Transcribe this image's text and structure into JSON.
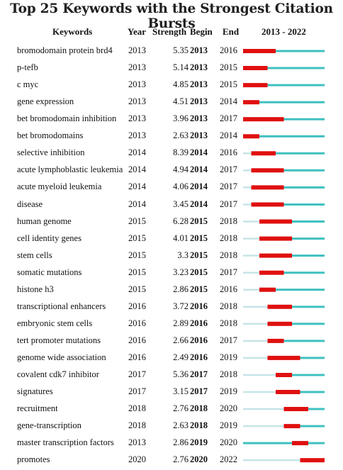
{
  "chart_data": {
    "type": "table",
    "title": "Top 25 Keywords with the Strongest Citation Bursts",
    "columns": [
      "Keywords",
      "Year",
      "Strength",
      "Begin",
      "End",
      "2013 - 2022"
    ],
    "timeline": {
      "start": 2013,
      "end": 2022
    },
    "colors": {
      "burst": "#e01010",
      "active": "#3fc0c0",
      "pre": "#c4e4e6"
    },
    "rows": [
      {
        "keyword": "bromodomain protein brd4",
        "year": "2013",
        "strength": "5.35",
        "begin": "2013",
        "end": "2016"
      },
      {
        "keyword": "p-tefb",
        "year": "2013",
        "strength": "5.14",
        "begin": "2013",
        "end": "2015"
      },
      {
        "keyword": "c myc",
        "year": "2013",
        "strength": "4.85",
        "begin": "2013",
        "end": "2015"
      },
      {
        "keyword": "gene expression",
        "year": "2013",
        "strength": "4.51",
        "begin": "2013",
        "end": "2014"
      },
      {
        "keyword": "bet bromodomain inhibition",
        "year": "2013",
        "strength": "3.96",
        "begin": "2013",
        "end": "2017"
      },
      {
        "keyword": "bet bromodomains",
        "year": "2013",
        "strength": "2.63",
        "begin": "2013",
        "end": "2014"
      },
      {
        "keyword": "selective inhibition",
        "year": "2014",
        "strength": "8.39",
        "begin": "2014",
        "end": "2016"
      },
      {
        "keyword": "acute lymphoblastic leukemia",
        "year": "2014",
        "strength": "4.94",
        "begin": "2014",
        "end": "2017"
      },
      {
        "keyword": "acute myeloid leukemia",
        "year": "2014",
        "strength": "4.06",
        "begin": "2014",
        "end": "2017"
      },
      {
        "keyword": "disease",
        "year": "2014",
        "strength": "3.45",
        "begin": "2014",
        "end": "2017"
      },
      {
        "keyword": "human genome",
        "year": "2015",
        "strength": "6.28",
        "begin": "2015",
        "end": "2018"
      },
      {
        "keyword": "cell identity genes",
        "year": "2015",
        "strength": "4.01",
        "begin": "2015",
        "end": "2018"
      },
      {
        "keyword": "stem cells",
        "year": "2015",
        "strength": "3.3",
        "begin": "2015",
        "end": "2018"
      },
      {
        "keyword": "somatic mutations",
        "year": "2015",
        "strength": "3.23",
        "begin": "2015",
        "end": "2017"
      },
      {
        "keyword": "histone h3",
        "year": "2015",
        "strength": "2.86",
        "begin": "2015",
        "end": "2016"
      },
      {
        "keyword": "transcriptional enhancers",
        "year": "2016",
        "strength": "3.72",
        "begin": "2016",
        "end": "2018"
      },
      {
        "keyword": "embryonic stem cells",
        "year": "2016",
        "strength": "2.89",
        "begin": "2016",
        "end": "2018"
      },
      {
        "keyword": "tert promoter mutations",
        "year": "2016",
        "strength": "2.66",
        "begin": "2016",
        "end": "2017"
      },
      {
        "keyword": "genome wide association",
        "year": "2016",
        "strength": "2.49",
        "begin": "2016",
        "end": "2019"
      },
      {
        "keyword": "covalent cdk7 inhibitor",
        "year": "2017",
        "strength": "5.36",
        "begin": "2017",
        "end": "2018"
      },
      {
        "keyword": "signatures",
        "year": "2017",
        "strength": "3.15",
        "begin": "2017",
        "end": "2019"
      },
      {
        "keyword": "recruitment",
        "year": "2018",
        "strength": "2.76",
        "begin": "2018",
        "end": "2020"
      },
      {
        "keyword": "gene-transcription",
        "year": "2018",
        "strength": "2.63",
        "begin": "2018",
        "end": "2019"
      },
      {
        "keyword": "master transcription factors",
        "year": "2013",
        "strength": "2.86",
        "begin": "2019",
        "end": "2020"
      },
      {
        "keyword": "promotes",
        "year": "2020",
        "strength": "2.76",
        "begin": "2020",
        "end": "2022"
      }
    ]
  }
}
